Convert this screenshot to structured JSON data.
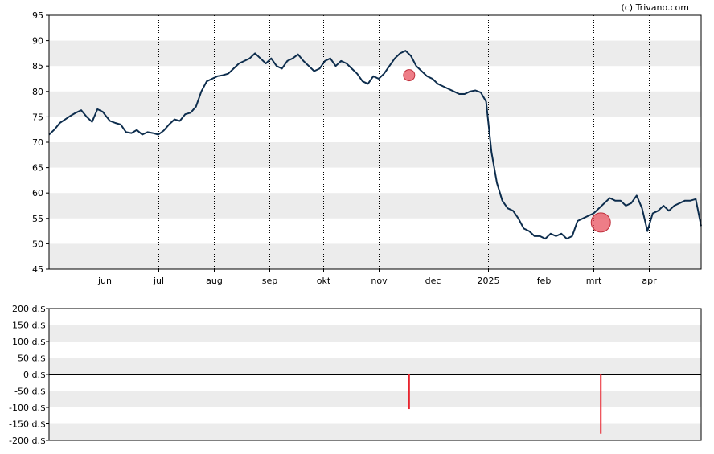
{
  "credit": "(c) Trivano.com",
  "chart_data": [
    {
      "type": "line",
      "name": "price",
      "ylim": [
        45,
        95
      ],
      "y_ticks": [
        "95",
        "90",
        "85",
        "80",
        "75",
        "70",
        "65",
        "60",
        "55",
        "50",
        "45"
      ],
      "x_tick_labels": [
        "jun",
        "jul",
        "aug",
        "sep",
        "okt",
        "nov",
        "dec",
        "2025",
        "feb",
        "mrt",
        "apr"
      ],
      "x_range": [
        "2024-05-01",
        "2025-04-30"
      ],
      "x_tick_dates": [
        "2024-06-01",
        "2024-07-01",
        "2024-08-01",
        "2024-09-01",
        "2024-10-01",
        "2024-11-01",
        "2024-12-01",
        "2025-01-01",
        "2025-02-01",
        "2025-03-01",
        "2025-04-01"
      ],
      "grid": "horizontal bands + dotted vertical lines",
      "line_color": "#0d2d4d",
      "marker_color": "#e8525f",
      "series": [
        {
          "x": [
            "2024-05-01",
            "2024-05-04",
            "2024-05-07",
            "2024-05-10",
            "2024-05-13",
            "2024-05-16",
            "2024-05-19",
            "2024-05-22",
            "2024-05-25",
            "2024-05-28",
            "2024-05-31",
            "2024-06-01",
            "2024-06-04",
            "2024-06-07",
            "2024-06-10",
            "2024-06-13",
            "2024-06-16",
            "2024-06-19",
            "2024-06-22",
            "2024-06-25",
            "2024-06-28",
            "2024-07-01",
            "2024-07-04",
            "2024-07-07",
            "2024-07-10",
            "2024-07-13",
            "2024-07-16",
            "2024-07-19",
            "2024-07-22",
            "2024-07-25",
            "2024-07-28",
            "2024-07-31",
            "2024-08-03",
            "2024-08-06",
            "2024-08-09",
            "2024-08-12",
            "2024-08-15",
            "2024-08-18",
            "2024-08-21",
            "2024-08-24",
            "2024-08-27",
            "2024-08-30",
            "2024-09-02",
            "2024-09-05",
            "2024-09-08",
            "2024-09-11",
            "2024-09-14",
            "2024-09-17",
            "2024-09-20",
            "2024-09-23",
            "2024-09-26",
            "2024-09-29",
            "2024-10-02",
            "2024-10-05",
            "2024-10-08",
            "2024-10-11",
            "2024-10-14",
            "2024-10-17",
            "2024-10-20",
            "2024-10-23",
            "2024-10-26",
            "2024-10-29",
            "2024-11-01",
            "2024-11-04",
            "2024-11-07",
            "2024-11-10",
            "2024-11-13",
            "2024-11-16",
            "2024-11-19",
            "2024-11-22",
            "2024-11-25",
            "2024-11-28",
            "2024-12-01",
            "2024-12-04",
            "2024-12-07",
            "2024-12-10",
            "2024-12-13",
            "2024-12-16",
            "2024-12-19",
            "2024-12-22",
            "2024-12-25",
            "2024-12-28",
            "2024-12-31",
            "2025-01-03",
            "2025-01-06",
            "2025-01-09",
            "2025-01-12",
            "2025-01-15",
            "2025-01-18",
            "2025-01-21",
            "2025-01-24",
            "2025-01-27",
            "2025-01-30",
            "2025-02-02",
            "2025-02-05",
            "2025-02-08",
            "2025-02-11",
            "2025-02-14",
            "2025-02-17",
            "2025-02-20",
            "2025-02-23",
            "2025-02-26",
            "2025-03-01",
            "2025-03-04",
            "2025-03-07",
            "2025-03-10",
            "2025-03-13",
            "2025-03-16",
            "2025-03-19",
            "2025-03-22",
            "2025-03-25",
            "2025-03-28",
            "2025-03-31",
            "2025-04-03",
            "2025-04-06",
            "2025-04-09",
            "2025-04-12",
            "2025-04-15",
            "2025-04-18",
            "2025-04-21",
            "2025-04-24",
            "2025-04-27",
            "2025-04-30"
          ],
          "y": [
            71.5,
            72.5,
            73.8,
            74.5,
            75.2,
            75.8,
            76.3,
            75.0,
            74.0,
            76.5,
            76.0,
            75.5,
            74.2,
            73.8,
            73.5,
            72.0,
            71.8,
            72.4,
            71.5,
            72.0,
            71.8,
            71.5,
            72.3,
            73.5,
            74.5,
            74.2,
            75.5,
            75.8,
            77.0,
            80.0,
            82.0,
            82.5,
            83.0,
            83.2,
            83.5,
            84.5,
            85.5,
            86.0,
            86.5,
            87.5,
            86.5,
            85.5,
            86.5,
            85.0,
            84.5,
            86.0,
            86.5,
            87.3,
            86.0,
            85.0,
            84.0,
            84.5,
            86.0,
            86.5,
            85.0,
            86.0,
            85.5,
            84.5,
            83.5,
            82.0,
            81.5,
            83.0,
            82.5,
            83.5,
            85.0,
            86.5,
            87.5,
            88.0,
            87.0,
            85.0,
            84.0,
            83.0,
            82.5,
            81.5,
            81.0,
            80.5,
            80.0,
            79.5,
            79.5,
            80.0,
            80.2,
            79.8,
            78.0,
            68.0,
            62.0,
            58.5,
            57.0,
            56.5,
            55.0,
            53.0,
            52.5,
            51.5,
            51.5,
            51.0,
            52.0,
            51.5,
            52.0,
            51.0,
            51.5,
            54.5,
            55.0,
            55.5,
            56.0,
            57.0,
            58.0,
            59.0,
            58.5,
            58.5,
            57.5,
            58.0,
            59.5,
            57.0,
            52.5,
            56.0,
            56.5,
            57.5,
            56.5,
            57.5,
            58.0,
            58.5,
            58.5,
            58.8,
            53.5
          ]
        }
      ],
      "markers": [
        {
          "x": "2024-11-18",
          "y": 83.2,
          "size": "small"
        },
        {
          "x": "2025-03-05",
          "y": 54.2,
          "size": "large"
        }
      ]
    },
    {
      "type": "bar",
      "name": "insider transactions",
      "ylim": [
        -200,
        200
      ],
      "y_ticks": [
        "200 d.$",
        "150 d.$",
        "100 d.$",
        "50 d.$",
        "0 d.$",
        "-50 d.$",
        "-100 d.$",
        "-150 d.$",
        "-200 d.$"
      ],
      "bar_color": "#e8242e",
      "x": [
        "2024-11-18",
        "2025-03-05"
      ],
      "values": [
        -105,
        -180
      ]
    }
  ]
}
